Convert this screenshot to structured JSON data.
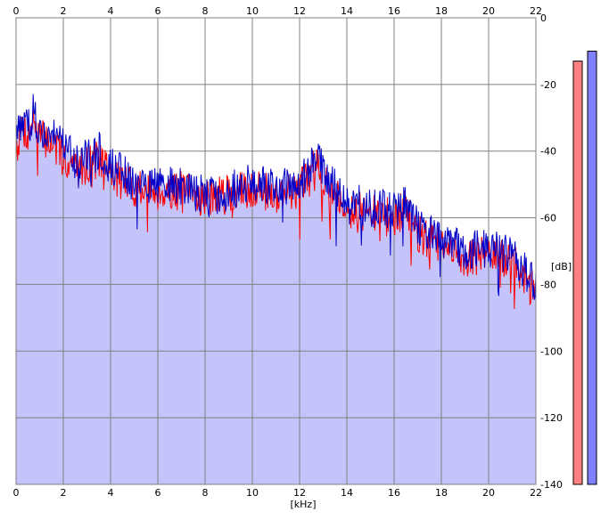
{
  "chart_data": {
    "type": "area",
    "xlabel": "[kHz]",
    "ylabel": "[dB]",
    "xlim": [
      0,
      22
    ],
    "ylim": [
      -140,
      0
    ],
    "x_ticks": [
      "0",
      "2",
      "4",
      "6",
      "8",
      "10",
      "12",
      "14",
      "16",
      "18",
      "20",
      "22"
    ],
    "y_ticks": [
      "0",
      "-20",
      "-40",
      "-60",
      "-80",
      "-100",
      "-120",
      "-140"
    ],
    "grid": true,
    "colors": {
      "plot_bg": "#ffffff",
      "fill": "#c4c4fb",
      "grid": "#808080",
      "series_left": "#ff0000",
      "series_right": "#0000c8",
      "meter_left": "#ff8080",
      "meter_right": "#8080ff"
    },
    "series": [
      {
        "color": "#ff0000",
        "x": [
          0,
          0.25,
          0.5,
          0.75,
          1,
          1.5,
          2,
          2.5,
          3,
          3.5,
          4,
          4.5,
          5,
          6,
          7,
          8,
          9,
          10,
          11,
          12,
          12.5,
          12.8,
          13,
          14,
          15,
          16,
          16.5,
          17,
          18,
          19,
          20,
          21,
          21.5,
          22
        ],
        "y": [
          -39,
          -33,
          -35,
          -30,
          -36,
          -37,
          -42,
          -45,
          -44,
          -42,
          -46,
          -49,
          -51,
          -52,
          -52,
          -54,
          -53,
          -51,
          -53,
          -51,
          -47,
          -42,
          -48,
          -57,
          -59,
          -60,
          -57,
          -65,
          -69,
          -72,
          -71,
          -73,
          -78,
          -83
        ]
      },
      {
        "color": "#0000c8",
        "x": [
          0,
          0.25,
          0.5,
          0.75,
          1,
          1.5,
          2,
          2.5,
          3,
          3.5,
          4,
          4.5,
          5,
          6,
          7,
          8,
          9,
          10,
          11,
          12,
          12.5,
          12.8,
          13,
          14,
          15,
          16,
          16.5,
          17,
          18,
          19,
          20,
          21,
          21.5,
          22
        ],
        "y": [
          -36,
          -31,
          -33,
          -28,
          -34,
          -35,
          -39,
          -43,
          -42,
          -40,
          -44,
          -47,
          -49,
          -50,
          -51,
          -53,
          -52,
          -49,
          -51,
          -49,
          -45,
          -40,
          -46,
          -55,
          -57,
          -58,
          -55,
          -63,
          -67,
          -70,
          -69,
          -71,
          -76,
          -81
        ]
      }
    ],
    "meters": [
      {
        "color": "#ff8080",
        "value": -13
      },
      {
        "color": "#8080ff",
        "value": -10
      }
    ]
  }
}
